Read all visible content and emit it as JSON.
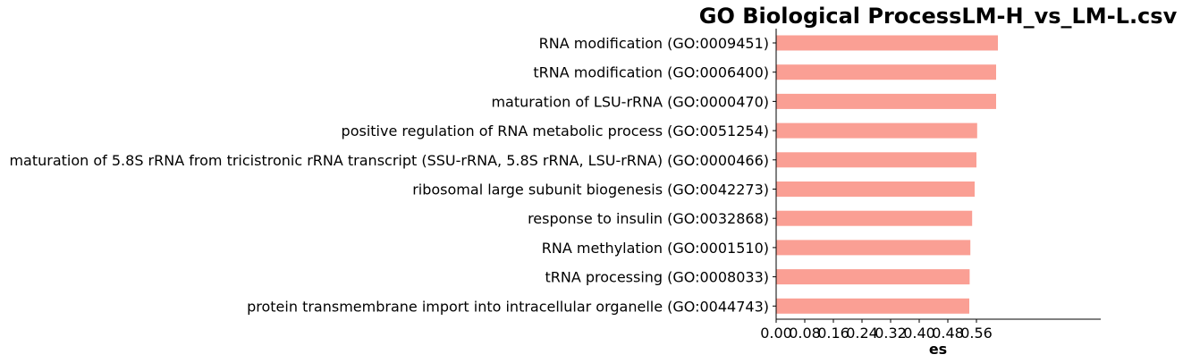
{
  "chart_data": {
    "type": "bar",
    "orientation": "horizontal",
    "title": "GO Biological ProcessLM-H_vs_LM-L.csv",
    "xlabel": "es",
    "ylabel": "",
    "categories": [
      "RNA modification (GO:0009451)",
      "tRNA modification (GO:0006400)",
      "maturation of LSU-rRNA (GO:0000470)",
      "positive regulation of RNA metabolic process (GO:0051254)",
      "maturation of 5.8S rRNA from tricistronic rRNA transcript (SSU-rRNA, 5.8S rRNA, LSU-rRNA) (GO:0000466)",
      "ribosomal large subunit biogenesis (GO:0042273)",
      "response to insulin (GO:0032868)",
      "RNA methylation (GO:0001510)",
      "tRNA processing (GO:0008033)",
      "protein transmembrane import into intracellular organelle (GO:0044743)"
    ],
    "values": [
      0.62,
      0.615,
      0.615,
      0.562,
      0.56,
      0.555,
      0.548,
      0.543,
      0.541,
      0.54
    ],
    "xticks": [
      "0.00",
      "0.08",
      "0.16",
      "0.24",
      "0.32",
      "0.40",
      "0.48",
      "0.56"
    ],
    "xtick_values": [
      0,
      0.08,
      0.16,
      0.24,
      0.32,
      0.4,
      0.48,
      0.56
    ],
    "xlim": [
      0,
      0.655
    ],
    "bar_color": "#fa9f94",
    "grid": false,
    "legend": "none"
  }
}
